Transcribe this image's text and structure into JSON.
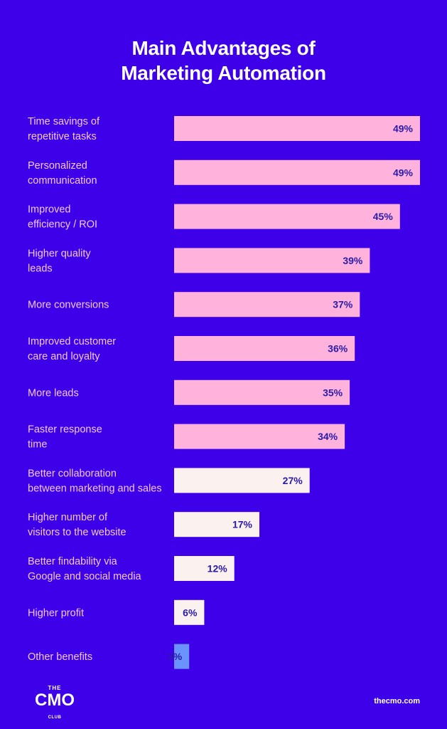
{
  "title_lines": [
    "Main Advantages of",
    "Marketing Automation"
  ],
  "chart_data": {
    "type": "bar",
    "orientation": "horizontal",
    "categories": [
      [
        "Time savings of",
        "repetitive tasks"
      ],
      [
        "Personalized",
        "communication"
      ],
      [
        "Improved",
        "efficiency / ROI"
      ],
      [
        "Higher quality",
        "leads"
      ],
      [
        "More conversions"
      ],
      [
        "Improved customer",
        "care and loyalty"
      ],
      [
        "More leads"
      ],
      [
        "Faster response",
        "time"
      ],
      [
        "Better collaboration",
        "between marketing and sales"
      ],
      [
        "Higher number of",
        "visitors to the website"
      ],
      [
        "Better findability via",
        "Google and social media"
      ],
      [
        "Higher profit"
      ],
      [
        "Other benefits"
      ]
    ],
    "values": [
      49,
      49,
      45,
      39,
      37,
      36,
      35,
      34,
      27,
      17,
      12,
      6,
      3
    ],
    "value_labels": [
      "49%",
      "49%",
      "45%",
      "39%",
      "37%",
      "36%",
      "35%",
      "34%",
      "27%",
      "17%",
      "12%",
      "6%",
      "3%"
    ],
    "colors": {
      "top_group": "#ffb3dc",
      "middle_group": "#fbf1ee",
      "last": "#6a93ff",
      "label_text": "#f3c8ea",
      "value_text": "#2a1aa8"
    },
    "color_groups": [
      "top_group",
      "top_group",
      "top_group",
      "top_group",
      "top_group",
      "top_group",
      "top_group",
      "top_group",
      "middle_group",
      "middle_group",
      "middle_group",
      "middle_group",
      "last"
    ],
    "unit": "%"
  },
  "footer": {
    "logo_the": "THE",
    "logo_main": "CMO",
    "logo_club": "CLUB",
    "site": "thecmo.com"
  }
}
